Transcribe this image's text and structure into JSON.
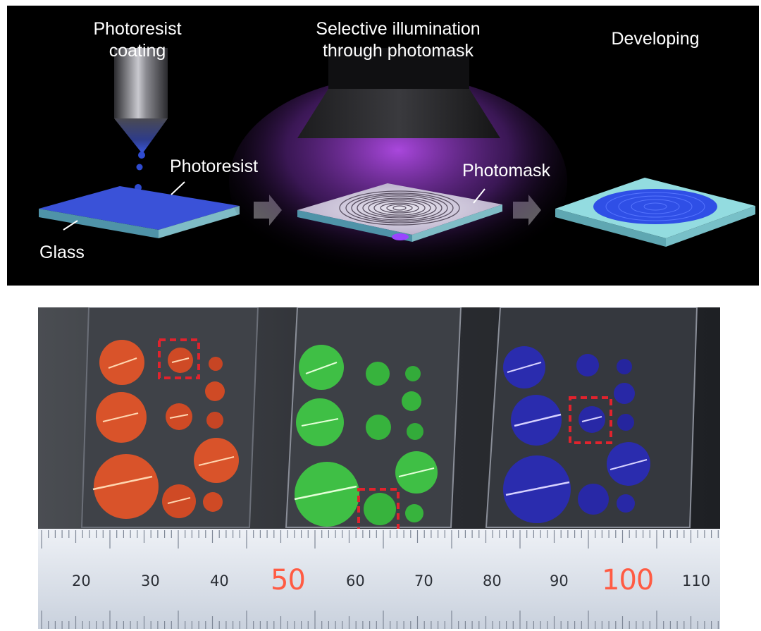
{
  "process": {
    "steps": [
      {
        "title": "Photoresist\ncoating"
      },
      {
        "title": "Selective illumination\nthrough photomask"
      },
      {
        "title": "Developing"
      }
    ],
    "labels": {
      "photoresist": "Photoresist",
      "glass": "Glass",
      "photomask": "Photomask"
    },
    "colors": {
      "photoresist": "#3a52d8",
      "glass": "#8ac7cf",
      "uv_light": "#a23bd8",
      "developed_film": "#93dce0"
    }
  },
  "photo": {
    "samples": [
      {
        "color": "red",
        "hex": "#d9532a"
      },
      {
        "color": "green",
        "hex": "#3fbf45"
      },
      {
        "color": "blue",
        "hex": "#2a2cae"
      }
    ],
    "ruler_ticks": [
      "20",
      "30",
      "40",
      "50",
      "60",
      "70",
      "80",
      "90",
      "100",
      "110"
    ],
    "ruler_colors": {
      "number": "#2b2f36",
      "highlight": "#ff5b43"
    }
  }
}
